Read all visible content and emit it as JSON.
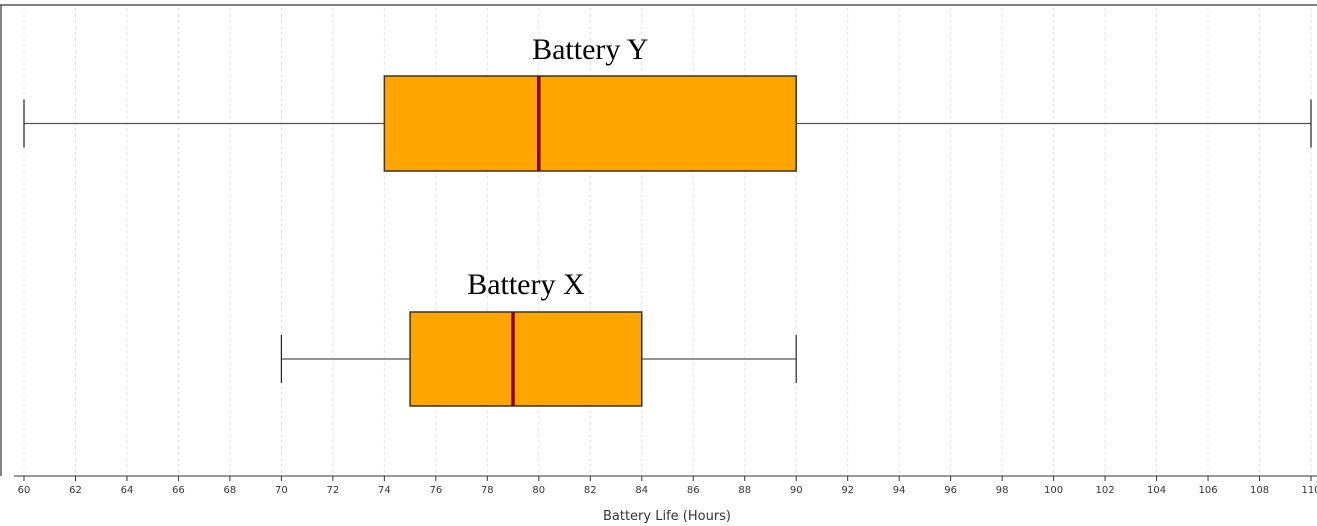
{
  "chart_data": {
    "type": "boxplot",
    "orientation": "horizontal",
    "xlabel": "Battery Life (Hours)",
    "xlim": [
      60,
      110
    ],
    "xticks": [
      60,
      62,
      64,
      66,
      68,
      70,
      72,
      74,
      76,
      78,
      80,
      82,
      84,
      86,
      88,
      90,
      92,
      94,
      96,
      98,
      100,
      102,
      104,
      106,
      108,
      110
    ],
    "xtick_labels": [
      "60",
      "62",
      "64",
      "66",
      "68",
      "70",
      "72",
      "74",
      "76",
      "78",
      "80",
      "82",
      "84",
      "86",
      "88",
      "90",
      "92",
      "94",
      "96",
      "98",
      "100",
      "102",
      "104",
      "106",
      "108",
      "110"
    ],
    "grid": "vertical",
    "series": [
      {
        "name": "Battery Y",
        "min": 60,
        "q1": 74,
        "median": 80,
        "q3": 90,
        "max": 110
      },
      {
        "name": "Battery X",
        "min": 70,
        "q1": 75,
        "median": 79,
        "q3": 84,
        "max": 90
      }
    ],
    "colors": {
      "box_fill": "#FFA500",
      "median": "#8B0000",
      "outline": "#333333",
      "grid": "#e2e2e2"
    }
  }
}
